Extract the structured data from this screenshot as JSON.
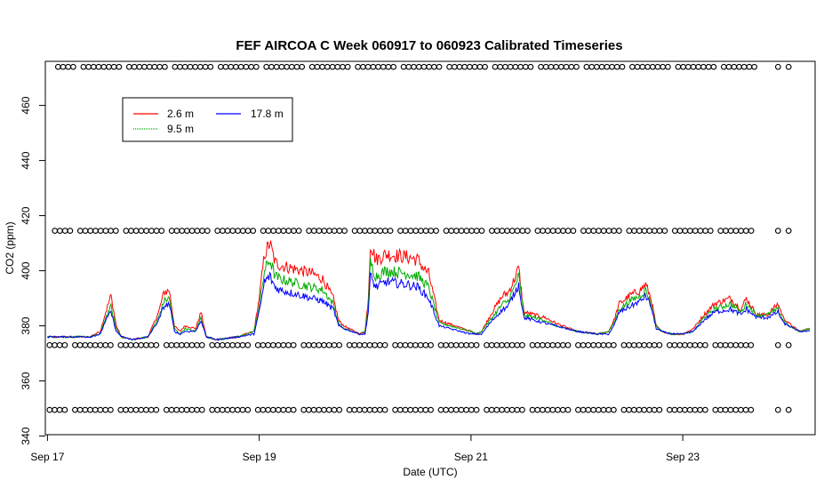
{
  "chart_data": {
    "type": "line",
    "title": "FEF AIRCOA C  Week 060917 to 060923  Calibrated Timeseries",
    "xlabel": "Date (UTC)",
    "ylabel": "CO2 (ppm)",
    "x_range_days": [
      -0.02,
      7.25
    ],
    "ylim": [
      340.5,
      476
    ],
    "x_ticks": [
      {
        "day": 0,
        "label": "Sep 17"
      },
      {
        "day": 2,
        "label": "Sep 19"
      },
      {
        "day": 4,
        "label": "Sep 21"
      },
      {
        "day": 6,
        "label": "Sep 23"
      }
    ],
    "y_ticks": [
      340,
      360,
      380,
      400,
      420,
      440,
      460
    ],
    "legend": {
      "position": "top-left",
      "entries": [
        {
          "name": "2.6 m",
          "color": "#ff0000"
        },
        {
          "name": "9.5 m",
          "color": "#00aa00"
        },
        {
          "name": "17.8 m",
          "color": "#0000ff"
        }
      ]
    },
    "series": [
      {
        "name": "2.6 m",
        "color": "#ff0000",
        "x": [
          0.0,
          0.4,
          0.5,
          0.55,
          0.6,
          0.65,
          0.7,
          0.8,
          0.95,
          1.05,
          1.1,
          1.15,
          1.2,
          1.25,
          1.3,
          1.4,
          1.45,
          1.5,
          1.6,
          1.8,
          1.95,
          2.0,
          2.05,
          2.1,
          2.15,
          2.2,
          2.3,
          2.5,
          2.6,
          2.7,
          2.75,
          2.8,
          2.95,
          3.0,
          3.03,
          3.05,
          3.1,
          3.2,
          3.4,
          3.5,
          3.55,
          3.6,
          3.7,
          4.0,
          4.05,
          4.1,
          4.2,
          4.3,
          4.35,
          4.4,
          4.45,
          4.5,
          4.7,
          4.8,
          5.0,
          5.2,
          5.3,
          5.35,
          5.4,
          5.5,
          5.6,
          5.65,
          5.7,
          5.75,
          5.8,
          5.9,
          6.0,
          6.1,
          6.2,
          6.3,
          6.45,
          6.55,
          6.6,
          6.7,
          6.8,
          6.9,
          6.95,
          7.0,
          7.1,
          7.2
        ],
        "values": [
          376,
          376,
          378,
          385,
          391,
          380,
          376,
          375,
          376,
          385,
          392,
          393,
          380,
          378,
          380,
          379,
          385,
          376,
          375,
          376,
          378,
          390,
          406,
          410,
          403,
          402,
          401,
          399,
          397,
          390,
          382,
          380,
          377,
          378,
          390,
          410,
          404,
          406,
          405,
          404,
          401,
          399,
          382,
          378,
          377,
          378,
          385,
          391,
          392,
          396,
          401,
          385,
          383,
          381,
          378,
          377,
          378,
          382,
          388,
          391,
          393,
          395,
          390,
          380,
          378,
          377,
          377,
          379,
          384,
          388,
          390,
          386,
          390,
          384,
          384,
          388,
          383,
          381,
          378,
          379
        ]
      },
      {
        "name": "9.5 m",
        "color": "#00aa00",
        "x": [
          0.0,
          0.4,
          0.5,
          0.55,
          0.6,
          0.65,
          0.7,
          0.8,
          0.95,
          1.05,
          1.1,
          1.15,
          1.2,
          1.25,
          1.3,
          1.4,
          1.45,
          1.5,
          1.6,
          1.8,
          1.95,
          2.0,
          2.05,
          2.1,
          2.15,
          2.2,
          2.3,
          2.5,
          2.6,
          2.7,
          2.75,
          2.8,
          2.95,
          3.0,
          3.03,
          3.05,
          3.1,
          3.2,
          3.4,
          3.5,
          3.55,
          3.6,
          3.7,
          4.0,
          4.05,
          4.1,
          4.2,
          4.3,
          4.35,
          4.4,
          4.45,
          4.5,
          4.7,
          4.8,
          5.0,
          5.2,
          5.3,
          5.35,
          5.4,
          5.5,
          5.6,
          5.65,
          5.7,
          5.75,
          5.8,
          5.9,
          6.0,
          6.1,
          6.2,
          6.3,
          6.45,
          6.55,
          6.6,
          6.7,
          6.8,
          6.9,
          6.95,
          7.0,
          7.1,
          7.2
        ],
        "values": [
          376,
          376,
          377,
          383,
          387,
          379,
          376,
          375,
          376,
          383,
          389,
          390,
          379,
          377,
          379,
          378,
          383,
          376,
          375,
          376,
          378,
          387,
          400,
          404,
          398,
          397,
          396,
          394,
          393,
          388,
          381,
          379,
          377,
          378,
          387,
          403,
          398,
          400,
          399,
          398,
          396,
          394,
          381,
          378,
          377,
          378,
          383,
          388,
          389,
          393,
          398,
          384,
          382,
          380,
          378,
          377,
          378,
          381,
          386,
          389,
          391,
          393,
          388,
          380,
          378,
          377,
          377,
          378,
          383,
          386,
          388,
          385,
          388,
          384,
          384,
          386,
          382,
          380,
          378,
          379
        ]
      },
      {
        "name": "17.8 m",
        "color": "#0000ff",
        "x": [
          0.0,
          0.4,
          0.5,
          0.55,
          0.6,
          0.65,
          0.7,
          0.8,
          0.95,
          1.05,
          1.1,
          1.15,
          1.2,
          1.25,
          1.3,
          1.4,
          1.45,
          1.5,
          1.6,
          1.8,
          1.95,
          2.0,
          2.05,
          2.1,
          2.15,
          2.2,
          2.3,
          2.5,
          2.6,
          2.7,
          2.75,
          2.8,
          2.95,
          3.0,
          3.03,
          3.05,
          3.1,
          3.2,
          3.4,
          3.5,
          3.55,
          3.6,
          3.7,
          4.0,
          4.05,
          4.1,
          4.2,
          4.3,
          4.35,
          4.4,
          4.45,
          4.5,
          4.7,
          4.8,
          5.0,
          5.2,
          5.3,
          5.35,
          5.4,
          5.5,
          5.6,
          5.65,
          5.7,
          5.75,
          5.8,
          5.9,
          6.0,
          6.1,
          6.2,
          6.3,
          6.45,
          6.55,
          6.6,
          6.7,
          6.8,
          6.9,
          6.95,
          7.0,
          7.1,
          7.2
        ],
        "values": [
          376,
          376,
          377,
          382,
          385,
          378,
          376,
          375,
          376,
          382,
          387,
          388,
          378,
          377,
          378,
          378,
          382,
          376,
          375,
          376,
          377,
          385,
          396,
          398,
          394,
          393,
          392,
          390,
          389,
          386,
          380,
          379,
          377,
          377,
          385,
          398,
          394,
          396,
          395,
          394,
          392,
          390,
          380,
          377,
          377,
          377,
          382,
          386,
          387,
          391,
          395,
          383,
          381,
          380,
          378,
          377,
          377,
          380,
          385,
          387,
          389,
          391,
          387,
          379,
          378,
          377,
          377,
          378,
          382,
          385,
          386,
          384,
          386,
          383,
          383,
          385,
          381,
          380,
          378,
          378
        ]
      }
    ],
    "calibration_rows": [
      {
        "y": 349.5,
        "x_start": 0.02,
        "x_end": 6.68,
        "gap_after": 6.9,
        "x_tail": [
          6.9,
          7.0
        ]
      },
      {
        "y": 373,
        "x_start": 0.02,
        "x_end": 6.68,
        "gap_after": 6.9,
        "x_tail": [
          6.9,
          7.0
        ]
      },
      {
        "y": 414.5,
        "x_start": 0.07,
        "x_end": 6.68,
        "gap_after": 6.9,
        "x_tail": [
          6.9,
          7.0
        ]
      },
      {
        "y": 474,
        "x_start": 0.1,
        "x_end": 6.68,
        "gap_after": 6.9,
        "x_tail": [
          6.9,
          7.0
        ]
      }
    ]
  }
}
